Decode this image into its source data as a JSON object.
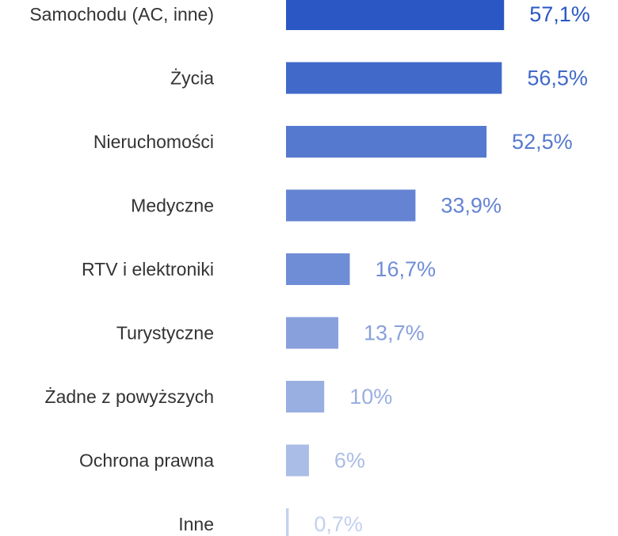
{
  "chart_data": {
    "type": "bar",
    "orientation": "horizontal",
    "categories": [
      "Samochodu (AC, inne)",
      "Życia",
      "Nieruchomości",
      "Medyczne",
      "RTV i elektroniki",
      "Turystyczne",
      "Żadne z powyższych",
      "Ochrona prawna",
      "Inne"
    ],
    "values": [
      57.1,
      56.5,
      52.5,
      33.9,
      16.7,
      13.7,
      10,
      6,
      0.7
    ],
    "value_labels": [
      "57,1%",
      "56,5%",
      "52,5%",
      "33,9%",
      "16,7%",
      "13,7%",
      "10%",
      "6%",
      "0,7%"
    ],
    "colors": [
      "#2a57c4",
      "#4169c9",
      "#5579cf",
      "#6484d3",
      "#6f8dd6",
      "#88a0dc",
      "#99aee1",
      "#aabde6",
      "#c3d0ee"
    ]
  }
}
